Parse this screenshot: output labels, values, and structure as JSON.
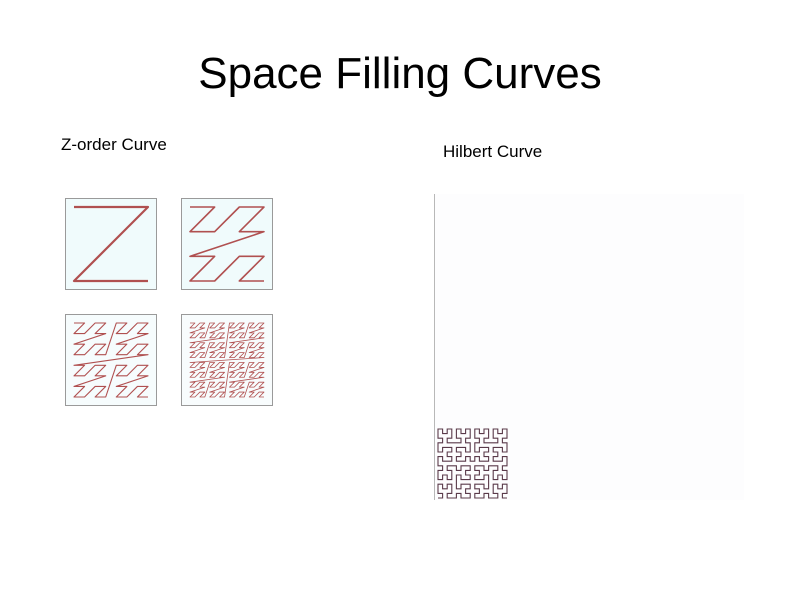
{
  "page": {
    "title": "Space Filling Curves"
  },
  "zorder": {
    "label": "Z-order Curve",
    "curve_color": "#b05050",
    "tile_background": "#f0fbfc",
    "iterations": [
      1,
      2,
      3,
      4
    ]
  },
  "hilbert": {
    "label": "Hilbert Curve",
    "curve_color": "#5a3a4a",
    "order": 4
  }
}
